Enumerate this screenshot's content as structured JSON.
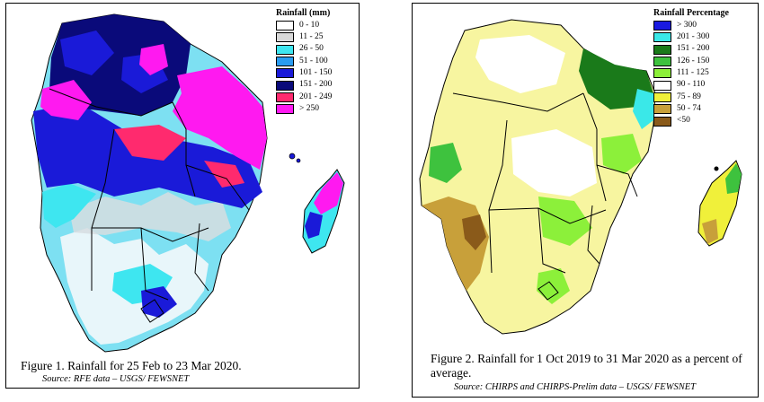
{
  "figure1": {
    "caption": "Figure 1. Rainfall for 25 Feb to 23 Mar 2020.",
    "source": "Source: RFE data  – USGS/ FEWSNET",
    "legend": {
      "title": "Rainfall (mm)",
      "items": [
        {
          "label": "0 - 10",
          "color": "#ffffff"
        },
        {
          "label": "11 - 25",
          "color": "#d9d9d9"
        },
        {
          "label": "26 - 50",
          "color": "#3ee6f0"
        },
        {
          "label": "51 - 100",
          "color": "#2a9cf0"
        },
        {
          "label": "101 - 150",
          "color": "#1a1ad8"
        },
        {
          "label": "151 - 200",
          "color": "#0a0a7a"
        },
        {
          "label": "201 - 249",
          "color": "#ff2a6e"
        },
        {
          "label": "> 250",
          "color": "#ff19f0"
        }
      ]
    }
  },
  "figure2": {
    "caption": "Figure 2. Rainfall for 1 Oct 2019 to 31 Mar 2020 as a percent of average.",
    "source": "Source: CHIRPS and CHIRPS-Prelim  data  – USGS/ FEWSNET",
    "legend": {
      "title": "Rainfall Percentage",
      "items": [
        {
          "label": "> 300",
          "color": "#1a1ae0"
        },
        {
          "label": "201 - 300",
          "color": "#3ae8e8"
        },
        {
          "label": "151 - 200",
          "color": "#1a7a1a"
        },
        {
          "label": "126 - 150",
          "color": "#3ec23e"
        },
        {
          "label": "111 - 125",
          "color": "#8cf03a"
        },
        {
          "label": "90 - 110",
          "color": "#ffffff"
        },
        {
          "label": "75 - 89",
          "color": "#f0f03a"
        },
        {
          "label": "50 - 74",
          "color": "#c8a03a"
        },
        {
          "label": "<50",
          "color": "#8a5a1a"
        }
      ]
    }
  }
}
